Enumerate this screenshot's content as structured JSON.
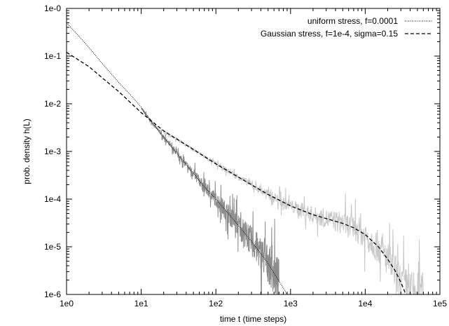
{
  "chart_data": {
    "type": "line",
    "title": "",
    "xlabel": "time t (time steps)",
    "ylabel": "prob. density h(L)",
    "xscale": "log",
    "yscale": "log",
    "xlim": [
      1,
      100000
    ],
    "ylim": [
      1e-06,
      1
    ],
    "grid": false,
    "legend_position": "top-right",
    "x_ticks": [
      {
        "value": 1,
        "label": "1e0"
      },
      {
        "value": 10,
        "label": "1e1"
      },
      {
        "value": 100,
        "label": "1e2"
      },
      {
        "value": 1000,
        "label": "1e3"
      },
      {
        "value": 10000,
        "label": "1e4"
      },
      {
        "value": 100000,
        "label": "1e5"
      }
    ],
    "y_ticks": [
      {
        "value": 1,
        "label": "1e-0"
      },
      {
        "value": 0.1,
        "label": "1e-1"
      },
      {
        "value": 0.01,
        "label": "1e-2"
      },
      {
        "value": 0.001,
        "label": "1e-3"
      },
      {
        "value": 0.0001,
        "label": "1e-4"
      },
      {
        "value": 1e-05,
        "label": "1e-5"
      },
      {
        "value": 1e-06,
        "label": "1e-6"
      }
    ],
    "series": [
      {
        "name": "uniform stress, f=0.0001",
        "style": "dotted",
        "color": "#000000",
        "x": [
          1,
          1.5,
          2,
          3,
          5,
          7,
          10,
          12,
          15,
          20,
          30,
          50,
          70,
          100,
          150,
          200,
          300,
          500,
          700,
          900
        ],
        "y": [
          0.5,
          0.25,
          0.15,
          0.07,
          0.028,
          0.016,
          0.0085,
          0.0055,
          0.0035,
          0.002,
          0.0009,
          0.00035,
          0.00018,
          0.0001,
          4.8e-05,
          2.8e-05,
          1.3e-05,
          4.5e-06,
          1.9e-06,
          1e-06
        ]
      },
      {
        "name": "Gaussian stress, f=1e-4, sigma=0.15",
        "style": "dashed",
        "color": "#000000",
        "x": [
          1,
          2,
          3,
          5,
          10,
          20,
          50,
          100,
          200,
          500,
          1000,
          2000,
          3000,
          5000,
          7000,
          10000,
          15000,
          20000,
          25000,
          30000,
          35000
        ],
        "y": [
          0.12,
          0.06,
          0.035,
          0.018,
          0.0065,
          0.0027,
          0.0011,
          0.00055,
          0.00029,
          0.000125,
          7.2e-05,
          4.7e-05,
          3.9e-05,
          3.1e-05,
          2.5e-05,
          1.8e-05,
          1e-05,
          5.5e-06,
          3.2e-06,
          1.8e-06,
          1e-06
        ]
      }
    ],
    "noisy_data": [
      {
        "color": "#8c8c8c",
        "x": [
          10,
          12,
          15,
          20,
          30,
          50,
          70,
          100,
          150,
          200,
          300,
          500,
          700
        ],
        "y": [
          0.008,
          0.0055,
          0.0035,
          0.002,
          0.0009,
          0.00035,
          0.00018,
          0.0001,
          4.8e-05,
          2.8e-05,
          1.3e-05,
          4.5e-06,
          1.9e-06
        ]
      },
      {
        "color": "#c8c8c8",
        "x": [
          20,
          50,
          100,
          200,
          500,
          1000,
          2000,
          3000,
          5000,
          7000,
          10000,
          15000,
          20000,
          30000,
          40000,
          60000
        ],
        "y": [
          0.0027,
          0.0011,
          0.00055,
          0.00029,
          0.000125,
          7.2e-05,
          4.7e-05,
          3.9e-05,
          3.1e-05,
          2.5e-05,
          1.8e-05,
          1e-05,
          5.5e-06,
          1.8e-06,
          1.2e-06,
          1e-06
        ]
      }
    ]
  }
}
